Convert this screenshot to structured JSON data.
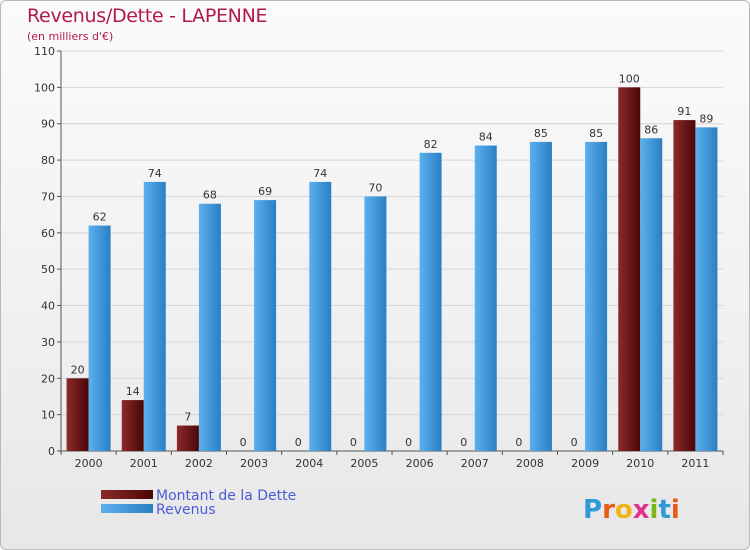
{
  "header": {
    "title": "Revenus/Dette - LAPENNE",
    "subtitle": "(en milliers d'€)"
  },
  "chart_data": {
    "type": "bar",
    "title": "Revenus/Dette - LAPENNE",
    "subtitle": "(en milliers d'€)",
    "xlabel": "",
    "ylabel": "",
    "categories": [
      "2000",
      "2001",
      "2002",
      "2003",
      "2004",
      "2005",
      "2006",
      "2007",
      "2008",
      "2009",
      "2010",
      "2011"
    ],
    "series": [
      {
        "name": "Montant de la Dette",
        "color": "#6e1010",
        "values": [
          20,
          14,
          7,
          0,
          0,
          0,
          0,
          0,
          0,
          0,
          100,
          91
        ]
      },
      {
        "name": "Revenus",
        "color": "#4da3e6",
        "values": [
          62,
          74,
          68,
          69,
          74,
          70,
          82,
          84,
          85,
          85,
          86,
          89
        ]
      }
    ],
    "ylim": [
      0,
      110
    ],
    "yticks": [
      0,
      10,
      20,
      30,
      40,
      50,
      60,
      70,
      80,
      90,
      100,
      110
    ],
    "grid": true,
    "legend_position": "bottom-left"
  },
  "logo": {
    "letters": [
      "P",
      "r",
      "o",
      "x",
      "i",
      "t",
      "i"
    ],
    "colors": [
      "#2f9ad8",
      "#e85a1a",
      "#f2b418",
      "#e1338a",
      "#7ab51d",
      "#2f9ad8",
      "#e85a1a"
    ]
  }
}
